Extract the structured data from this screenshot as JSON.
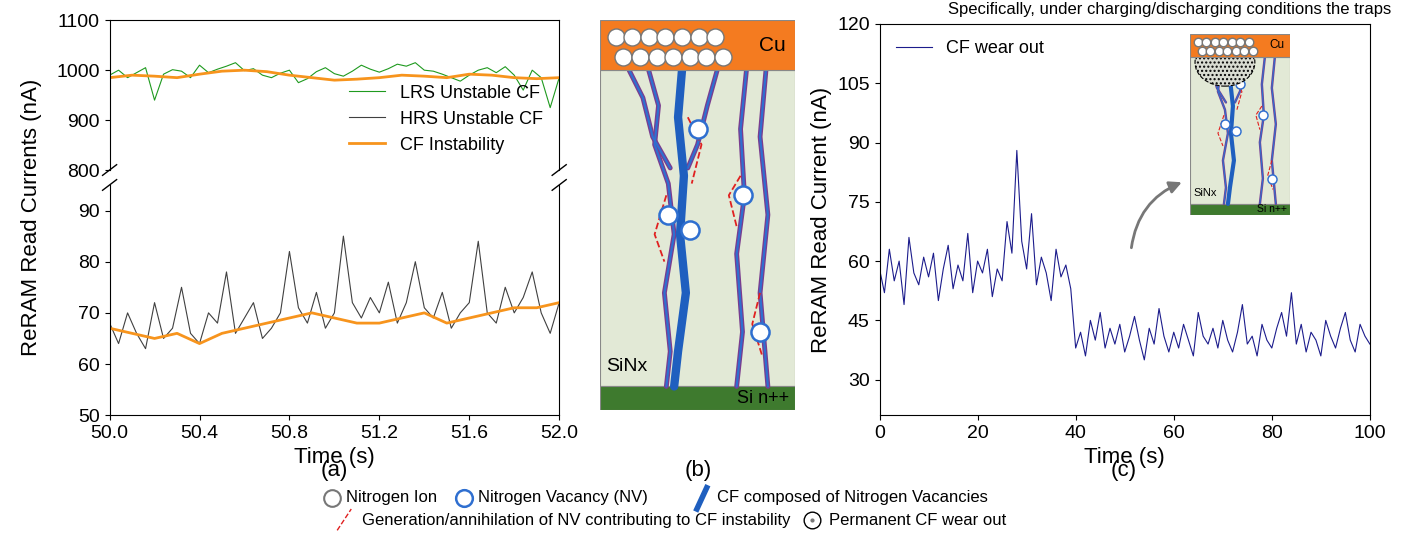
{
  "header_text": "Specifically, under charging/discharging conditions the traps",
  "panel_labels": [
    "(a)",
    "(b)",
    "(c)"
  ],
  "chart_data": [
    {
      "type": "line",
      "x": [
        50.0,
        50.04,
        50.08,
        50.12,
        50.16,
        50.2,
        50.24,
        50.28,
        50.32,
        50.36,
        50.4,
        50.44,
        50.48,
        50.52,
        50.56,
        50.6,
        50.64,
        50.68,
        50.72,
        50.76,
        50.8,
        50.84,
        50.88,
        50.92,
        50.96,
        51.0,
        51.04,
        51.08,
        51.12,
        51.16,
        51.2,
        51.24,
        51.28,
        51.32,
        51.36,
        51.4,
        51.44,
        51.48,
        51.52,
        51.56,
        51.6,
        51.64,
        51.68,
        51.72,
        51.76,
        51.8,
        51.84,
        51.88,
        51.92,
        51.96,
        52.0
      ],
      "xlim": [
        50.0,
        52.0
      ],
      "ylim": [
        800,
        1100
      ],
      "yticks": [
        800,
        900,
        1000,
        1100
      ],
      "tick_labels": "y",
      "legend": "lower right",
      "series": [
        {
          "name": "LRS Unstable CF",
          "color": "#1f9a1f",
          "values": [
            990,
            1000,
            985,
            995,
            1005,
            940,
            992,
            1001,
            998,
            985,
            1010,
            995,
            1002,
            1008,
            1015,
            999,
            1003,
            990,
            985,
            994,
            1000,
            975,
            983,
            997,
            1005,
            993,
            988,
            998,
            1010,
            1002,
            996,
            1003,
            1012,
            1008,
            1015,
            1000,
            998,
            992,
            985,
            978,
            990,
            1000,
            1005,
            995,
            1007,
            990,
            960,
            1000,
            985,
            925,
            985
          ]
        },
        {
          "color": "#f7941d",
          "x": [
            50.0,
            50.1,
            50.2,
            50.3,
            50.4,
            50.5,
            50.6,
            50.7,
            50.8,
            50.9,
            51.0,
            51.1,
            51.2,
            51.3,
            51.4,
            51.5,
            51.6,
            51.7,
            51.8,
            51.9,
            52.0
          ],
          "values": [
            985,
            990,
            988,
            985,
            992,
            998,
            1000,
            997,
            990,
            985,
            980,
            982,
            985,
            990,
            988,
            985,
            992,
            990,
            985,
            983,
            985
          ]
        }
      ]
    },
    {
      "type": "line",
      "x": [
        50.0,
        50.04,
        50.08,
        50.12,
        50.16,
        50.2,
        50.24,
        50.28,
        50.32,
        50.36,
        50.4,
        50.44,
        50.48,
        50.52,
        50.56,
        50.6,
        50.64,
        50.68,
        50.72,
        50.76,
        50.8,
        50.84,
        50.88,
        50.92,
        50.96,
        51.0,
        51.04,
        51.08,
        51.12,
        51.16,
        51.2,
        51.24,
        51.28,
        51.32,
        51.36,
        51.4,
        51.44,
        51.48,
        51.52,
        51.56,
        51.6,
        51.64,
        51.68,
        51.72,
        51.76,
        51.8,
        51.84,
        51.88,
        51.92,
        51.96,
        52.0
      ],
      "x_label": "Time (s)",
      "y_label": "ReRAM Read Currents (nA)",
      "xlim": [
        50.0,
        52.0
      ],
      "xticks": [
        50.0,
        50.4,
        50.8,
        51.2,
        51.6,
        52.0
      ],
      "ylim": [
        50,
        95
      ],
      "yticks": [
        50,
        60,
        70,
        80,
        90
      ],
      "series": [
        {
          "name": "HRS Unstable CF",
          "color": "#404040",
          "values": [
            68,
            64,
            70,
            66,
            63,
            72,
            65,
            67,
            75,
            66,
            64,
            70,
            68,
            78,
            66,
            69,
            72,
            65,
            67,
            70,
            82,
            71,
            68,
            74,
            67,
            70,
            85,
            72,
            69,
            73,
            70,
            76,
            68,
            72,
            80,
            71,
            69,
            74,
            67,
            70,
            72,
            84,
            70,
            68,
            75,
            70,
            73,
            78,
            70,
            66,
            72
          ]
        },
        {
          "name": "CF Instability",
          "color": "#f7941d",
          "x": [
            50.0,
            50.1,
            50.2,
            50.3,
            50.4,
            50.5,
            50.6,
            50.7,
            50.8,
            50.9,
            51.0,
            51.1,
            51.2,
            51.3,
            51.4,
            51.5,
            51.6,
            51.7,
            51.8,
            51.9,
            52.0
          ],
          "values": [
            67,
            66,
            65,
            66,
            64,
            66,
            67,
            68,
            69,
            70,
            69,
            68,
            68,
            69,
            70,
            68,
            69,
            70,
            71,
            71,
            72
          ]
        }
      ]
    },
    {
      "type": "line",
      "x": [
        0,
        1,
        2,
        3,
        4,
        5,
        6,
        7,
        8,
        9,
        10,
        11,
        12,
        13,
        14,
        15,
        16,
        17,
        18,
        19,
        20,
        21,
        22,
        23,
        24,
        25,
        26,
        27,
        28,
        29,
        30,
        31,
        32,
        33,
        34,
        35,
        36,
        37,
        38,
        39,
        40,
        41,
        42,
        43,
        44,
        45,
        46,
        47,
        48,
        49,
        50,
        51,
        52,
        53,
        54,
        55,
        56,
        57,
        58,
        59,
        60,
        61,
        62,
        63,
        64,
        65,
        66,
        67,
        68,
        69,
        70,
        71,
        72,
        73,
        74,
        75,
        76,
        77,
        78,
        79,
        80,
        81,
        82,
        83,
        84,
        85,
        86,
        87,
        88,
        89,
        90,
        91,
        92,
        93,
        94,
        95,
        96,
        97,
        98,
        99,
        100
      ],
      "x_label": "Time (s)",
      "y_label": "ReRAM Read Current (nA)",
      "xlim": [
        0,
        100
      ],
      "xticks": [
        0,
        20,
        40,
        60,
        80,
        100
      ],
      "ylim": [
        21,
        120
      ],
      "yticks": [
        30,
        45,
        60,
        75,
        90,
        105,
        120
      ],
      "legend": "upper left",
      "series": [
        {
          "name": "CF wear out",
          "color": "#1c1c8c",
          "values": [
            58,
            52,
            63,
            55,
            60,
            49,
            66,
            57,
            54,
            61,
            56,
            62,
            50,
            58,
            64,
            53,
            59,
            55,
            67,
            52,
            60,
            57,
            63,
            51,
            58,
            55,
            70,
            62,
            88,
            65,
            58,
            72,
            54,
            61,
            57,
            50,
            63,
            56,
            59,
            53,
            38,
            42,
            36,
            45,
            40,
            47,
            38,
            43,
            39,
            44,
            37,
            41,
            46,
            40,
            35,
            43,
            39,
            48,
            41,
            37,
            42,
            38,
            44,
            40,
            36,
            47,
            41,
            39,
            43,
            38,
            45,
            40,
            37,
            42,
            49,
            39,
            41,
            36,
            44,
            40,
            38,
            43,
            47,
            41,
            52,
            39,
            44,
            37,
            42,
            40,
            36,
            45,
            41,
            38,
            43,
            47,
            40,
            37,
            44,
            41,
            39
          ]
        }
      ]
    }
  ],
  "diagram": {
    "layers": {
      "top": "Cu",
      "middle": "SiNx",
      "bottom": "Si n++"
    }
  },
  "inset": {
    "layers": {
      "top": "Cu",
      "middle": "SiNx",
      "bottom": "Si n++"
    }
  },
  "key": {
    "ion": "Nitrogen Ion",
    "vacancy": "Nitrogen Vacancy (NV)",
    "filament": "CF composed of Nitrogen Vacancies",
    "generation": "Generation/annihilation of NV contributing to CF instability",
    "wear": "Permanent CF wear out"
  }
}
